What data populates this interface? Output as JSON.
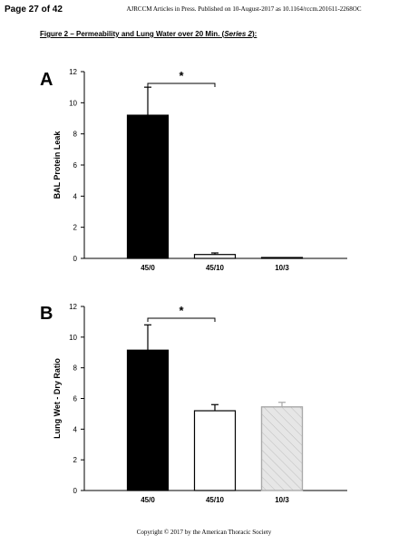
{
  "page": {
    "page_number": "Page 27 of 42",
    "journal_header": "AJRCCM Articles in Press. Published on 10-August-2017 as 10.1164/rccm.201611-2268OC",
    "figure_title": {
      "main": "Figure 2 – Permeability and Lung Water over 20 Min. (",
      "series": "Series 2",
      "end": "):"
    },
    "footer": "Copyright © 2017 by the American Thoracic Society"
  },
  "colors": {
    "bar_black": "#000000",
    "bar_white": "#ffffff",
    "bar_hatched": "#e6e6e6",
    "hatch_line": "#bdbdbd",
    "hatched_outline": "#a8a8a8"
  },
  "chart_data": [
    {
      "panel_label": "A",
      "type": "bar",
      "categories": [
        "45/0",
        "45/10",
        "10/3"
      ],
      "values": [
        9.2,
        0.25,
        0.03
      ],
      "error_upper": [
        11.0,
        0.35,
        0.05
      ],
      "bar_styles": [
        "black",
        "white",
        "white"
      ],
      "ylabel": "BAL Protein Leak",
      "ylim": [
        0,
        12
      ],
      "yticks": [
        "0",
        "2",
        "4",
        "6",
        "8",
        "10",
        "12"
      ],
      "significance": {
        "from": "45/0",
        "to": "45/10",
        "label": "*"
      }
    },
    {
      "panel_label": "B",
      "type": "bar",
      "categories": [
        "45/0",
        "45/10",
        "10/3"
      ],
      "values": [
        9.15,
        5.2,
        5.45
      ],
      "error_upper": [
        10.8,
        5.6,
        5.75
      ],
      "bar_styles": [
        "black",
        "white",
        "hatched"
      ],
      "ylabel": "Lung Wet - Dry Ratio",
      "ylim": [
        0,
        12
      ],
      "yticks": [
        "0",
        "2",
        "4",
        "6",
        "8",
        "10",
        "12"
      ],
      "significance": {
        "from": "45/0",
        "to": "45/10",
        "label": "*"
      }
    }
  ]
}
